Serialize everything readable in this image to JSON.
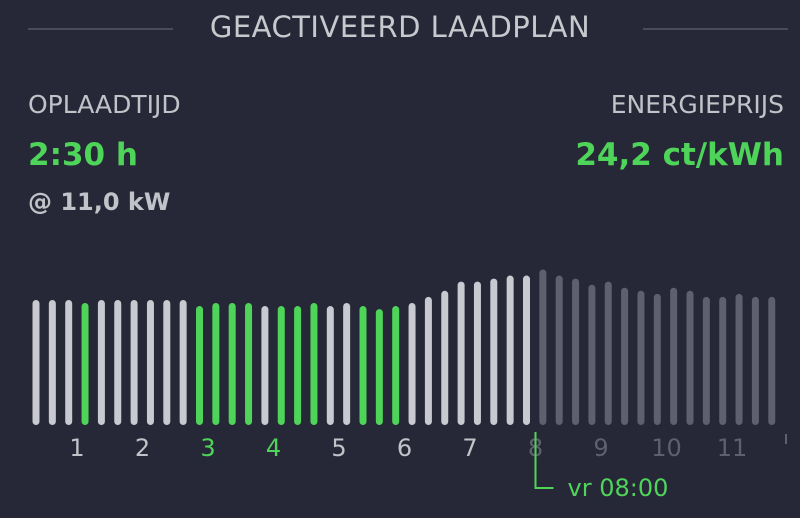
{
  "header": {
    "title": "GEACTIVEERD LAADPLAN"
  },
  "charge_time": {
    "label": "OPLAADTIJD",
    "value": "2:30 h",
    "power": "@ 11,0 kW"
  },
  "energy_price": {
    "label": "ENERGIEPRIJS",
    "value": "24,2 ct/kWh"
  },
  "colors": {
    "background": "#272837",
    "bar_default": "#c9c9d1",
    "bar_charging": "#4fd45a",
    "bar_future": "#5e5f6f",
    "accent": "#4fd45a"
  },
  "chart_data": {
    "type": "bar",
    "description_note": "",
    "hour_labels": [
      "1",
      "2",
      "3",
      "4",
      "5",
      "6",
      "7",
      "8",
      "9",
      "10",
      "11"
    ],
    "highlighted_hours": [
      "3",
      "4"
    ],
    "deadline_hour": "8",
    "deadline_label": "vr 08:00",
    "bars": [
      {
        "value": 64,
        "state": "normal"
      },
      {
        "value": 64,
        "state": "normal"
      },
      {
        "value": 64,
        "state": "normal"
      },
      {
        "value": 63,
        "state": "active"
      },
      {
        "value": 64,
        "state": "normal"
      },
      {
        "value": 64,
        "state": "normal"
      },
      {
        "value": 64,
        "state": "normal"
      },
      {
        "value": 64,
        "state": "normal"
      },
      {
        "value": 64,
        "state": "normal"
      },
      {
        "value": 64,
        "state": "normal"
      },
      {
        "value": 62,
        "state": "active"
      },
      {
        "value": 63,
        "state": "active"
      },
      {
        "value": 63,
        "state": "active"
      },
      {
        "value": 63,
        "state": "active"
      },
      {
        "value": 62,
        "state": "normal"
      },
      {
        "value": 62,
        "state": "active"
      },
      {
        "value": 62,
        "state": "active"
      },
      {
        "value": 63,
        "state": "active"
      },
      {
        "value": 62,
        "state": "normal"
      },
      {
        "value": 63,
        "state": "normal"
      },
      {
        "value": 62,
        "state": "active"
      },
      {
        "value": 61,
        "state": "active"
      },
      {
        "value": 62,
        "state": "active"
      },
      {
        "value": 63,
        "state": "normal"
      },
      {
        "value": 65,
        "state": "normal"
      },
      {
        "value": 67,
        "state": "normal"
      },
      {
        "value": 70,
        "state": "normal"
      },
      {
        "value": 70,
        "state": "normal"
      },
      {
        "value": 71,
        "state": "normal"
      },
      {
        "value": 72,
        "state": "normal"
      },
      {
        "value": 72,
        "state": "normal"
      },
      {
        "value": 74,
        "state": "future"
      },
      {
        "value": 72,
        "state": "future"
      },
      {
        "value": 71,
        "state": "future"
      },
      {
        "value": 69,
        "state": "future"
      },
      {
        "value": 70,
        "state": "future"
      },
      {
        "value": 68,
        "state": "future"
      },
      {
        "value": 67,
        "state": "future"
      },
      {
        "value": 66,
        "state": "future"
      },
      {
        "value": 68,
        "state": "future"
      },
      {
        "value": 67,
        "state": "future"
      },
      {
        "value": 65,
        "state": "future"
      },
      {
        "value": 65,
        "state": "future"
      },
      {
        "value": 66,
        "state": "future"
      },
      {
        "value": 65,
        "state": "future"
      },
      {
        "value": 65,
        "state": "future"
      }
    ]
  }
}
